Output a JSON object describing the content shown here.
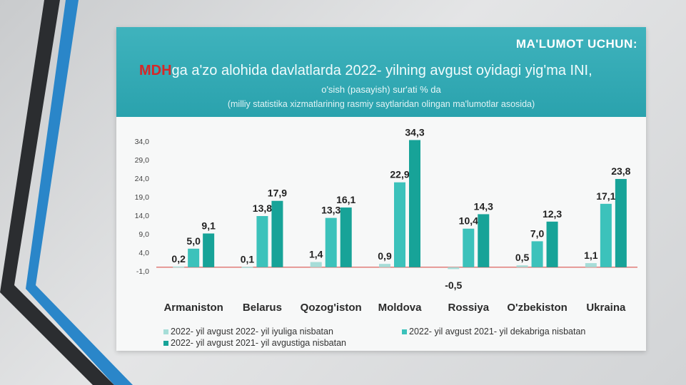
{
  "header": {
    "kicker": "MA'LUMOT UCHUN:",
    "title_brand": "MDH",
    "title_rest": "ga a'zo alohida davlatlarda 2022- yilning avgust oyidagi yig'ma INI,",
    "subtitle": "o'sish (pasayish) sur'ati % da",
    "source": "(milliy statistika xizmatlarining rasmiy saytlaridan olingan ma'lumotlar asosida)"
  },
  "colors": {
    "series1": "#a6ddd8",
    "series2": "#3cc2bb",
    "series3": "#17a398",
    "baseline": "#d9534f",
    "header": "#2fa9b3"
  },
  "chart_data": {
    "type": "bar",
    "categories": [
      "Armaniston",
      "Belarus",
      "Qozog'iston",
      "Moldova",
      "Rossiya",
      "O'zbekiston",
      "Ukraina"
    ],
    "series": [
      {
        "name": "2022- yil avgust 2022- yil iyuliga nisbatan",
        "values": [
          0.2,
          0.1,
          1.4,
          0.9,
          -0.5,
          0.5,
          1.1
        ],
        "labels": [
          "0,2",
          "0,1",
          "1,4",
          "0,9",
          "-0,5",
          "0,5",
          "1,1"
        ]
      },
      {
        "name": "2022- yil avgust 2021- yil dekabriga nisbatan",
        "values": [
          5.0,
          13.8,
          13.3,
          22.9,
          10.4,
          7.0,
          17.1
        ],
        "labels": [
          "5,0",
          "13,8",
          "13,3",
          "22,9",
          "10,4",
          "7,0",
          "17,1"
        ]
      },
      {
        "name": "2022- yil avgust 2021- yil avgustiga nisbatan",
        "values": [
          9.1,
          17.9,
          16.1,
          34.3,
          14.3,
          12.3,
          23.8
        ],
        "labels": [
          "9,1",
          "17,9",
          "16,1",
          "34,3",
          "14,3",
          "12,3",
          "23,8"
        ]
      }
    ],
    "yticks": [
      -1,
      4,
      9,
      14,
      19,
      24,
      29,
      34
    ],
    "ytick_labels": [
      "-1,0",
      "4,0",
      "9,0",
      "14,0",
      "19,0",
      "24,0",
      "29,0",
      "34,0"
    ],
    "ylim": [
      -1,
      34
    ],
    "legend": "bottom",
    "grid": false
  }
}
